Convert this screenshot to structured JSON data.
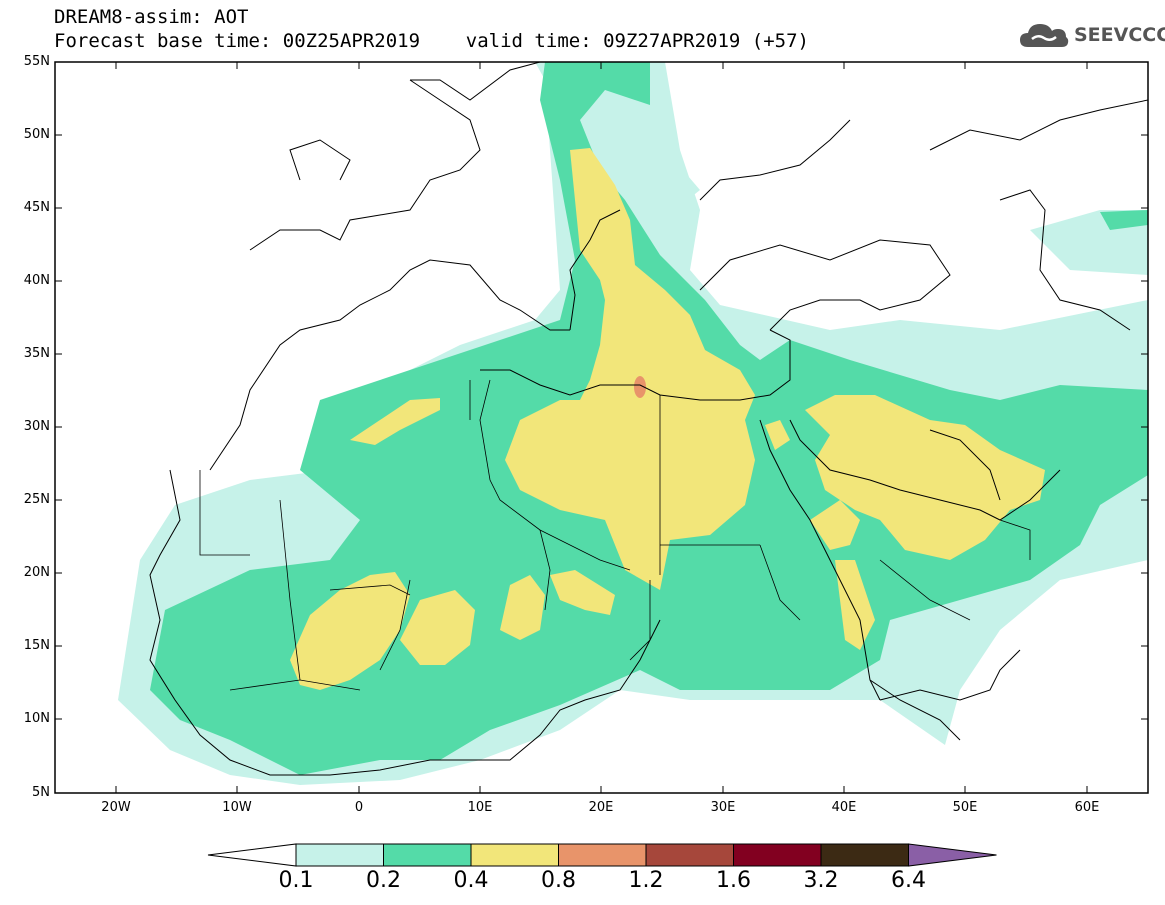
{
  "title": {
    "line1": "DREAM8-assim: AOT",
    "line2": "Forecast base time: 00Z25APR2019    valid time: 09Z27APR2019 (+57)"
  },
  "logo": {
    "text": "SEEVCCC",
    "icon": "cloud-icon"
  },
  "map": {
    "projection": "lat-lon",
    "lon_range": [
      -25,
      65
    ],
    "lat_range": [
      5,
      55
    ],
    "lat_labels": [
      "55N",
      "50N",
      "45N",
      "40N",
      "35N",
      "30N",
      "25N",
      "20N",
      "15N",
      "10N",
      "5N"
    ],
    "lon_labels": [
      "20W",
      "10W",
      "0",
      "10E",
      "20E",
      "30E",
      "40E",
      "50E",
      "60E"
    ]
  },
  "colorbar": {
    "levels": [
      "0.1",
      "0.2",
      "0.4",
      "0.8",
      "1.2",
      "1.6",
      "3.2",
      "6.4"
    ],
    "colors": [
      "#ffffff",
      "#c6f2e9",
      "#54dba8",
      "#f2e67a",
      "#e8946a",
      "#a6473b",
      "#820020",
      "#3c2a14",
      "#8a5fa6"
    ]
  }
}
